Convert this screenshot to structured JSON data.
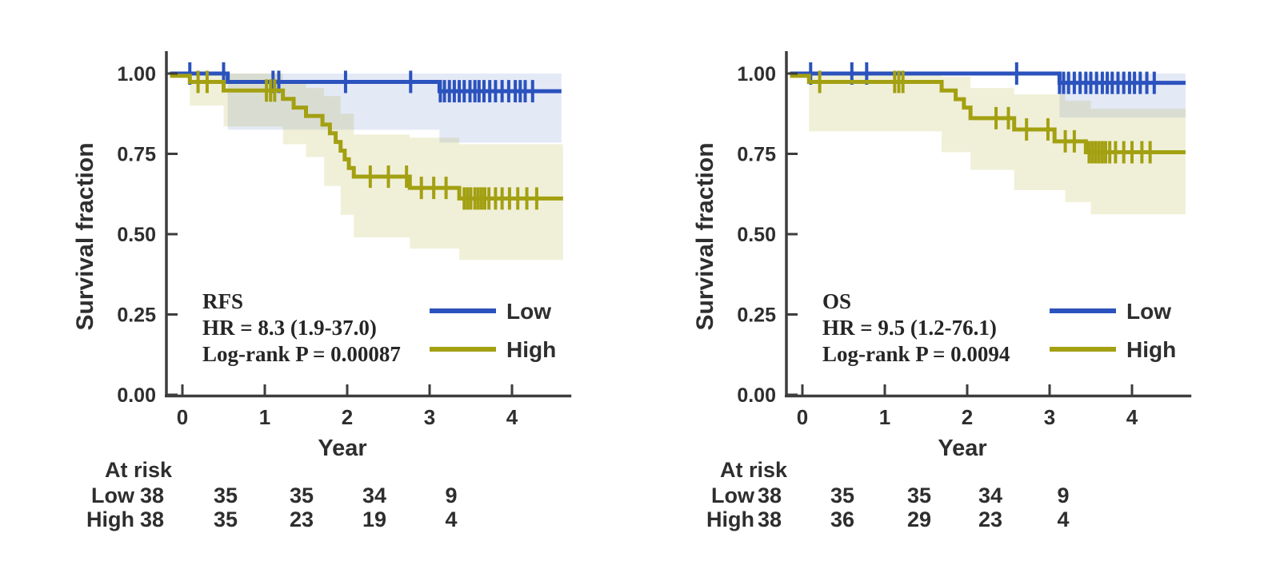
{
  "figure": {
    "background": "#ffffff",
    "axis_color": "#3d3d3d",
    "text_color": "#2e2e2e",
    "low_color": "#2b52bd",
    "high_color": "#a3a012"
  },
  "chart_data": [
    {
      "type": "line",
      "subtype": "kaplan-meier-step",
      "endpoint": "RFS",
      "stats_lines": [
        "RFS",
        "HR = 8.3 (1.9-37.0)",
        "Log-rank P = 0.00087"
      ],
      "xlabel": "Year",
      "ylabel": "Survival fraction",
      "xlim": [
        0,
        4.65
      ],
      "ylim": [
        0.0,
        1.05
      ],
      "xtick_values": [
        0,
        1,
        2,
        3,
        4
      ],
      "xtick_labels": [
        "0",
        "1",
        "2",
        "3",
        "4"
      ],
      "ytick_values": [
        1.0,
        0.75,
        0.5,
        0.25,
        0.0
      ],
      "ytick_labels": [
        "1.00",
        "0.75",
        "0.50",
        "0.25",
        "0.00"
      ],
      "grid": false,
      "legend_position": "lower right inside",
      "legend": [
        {
          "label": "Low",
          "color": "#2b52bd"
        },
        {
          "label": "High",
          "color": "#a3a012"
        }
      ],
      "series": [
        {
          "name": "Low",
          "color": "#2b52bd",
          "band_opacity": 0.13,
          "steps": [
            [
              -0.15,
              1.0
            ],
            [
              0.55,
              0.974
            ],
            [
              3.12,
              0.945
            ]
          ],
          "end": 4.6,
          "censors": [
            0.09,
            0.5,
            1.1,
            1.17,
            1.98,
            2.77,
            3.13,
            3.18,
            3.24,
            3.3,
            3.36,
            3.42,
            3.49,
            3.55,
            3.6,
            3.66,
            3.73,
            3.8,
            3.88,
            3.96,
            4.04,
            4.1,
            4.16,
            4.25
          ],
          "ci_segments": [
            [
              0.55,
              3.12,
              0.825,
              1.0
            ],
            [
              3.12,
              4.6,
              0.785,
              1.0
            ]
          ]
        },
        {
          "name": "High",
          "color": "#a3a012",
          "band_opacity": 0.16,
          "steps": [
            [
              -0.15,
              0.993
            ],
            [
              0.09,
              0.974
            ],
            [
              0.5,
              0.947
            ],
            [
              1.22,
              0.921
            ],
            [
              1.35,
              0.894
            ],
            [
              1.5,
              0.868
            ],
            [
              1.7,
              0.841
            ],
            [
              1.79,
              0.814
            ],
            [
              1.86,
              0.787
            ],
            [
              1.92,
              0.76
            ],
            [
              1.97,
              0.733
            ],
            [
              2.02,
              0.706
            ],
            [
              2.08,
              0.679
            ],
            [
              2.76,
              0.644
            ],
            [
              3.36,
              0.611
            ]
          ],
          "end": 4.62,
          "censors": [
            0.19,
            0.3,
            1.02,
            1.07,
            1.12,
            2.28,
            2.5,
            2.72,
            2.9,
            3.05,
            3.2,
            3.42,
            3.46,
            3.5,
            3.55,
            3.59,
            3.63,
            3.67,
            3.72,
            3.8,
            3.88,
            3.97,
            4.07,
            4.18,
            4.3
          ],
          "ci_segments": [
            [
              0.09,
              0.5,
              0.9,
              1.0
            ],
            [
              0.5,
              1.22,
              0.835,
              1.0
            ],
            [
              1.22,
              1.5,
              0.78,
              0.97
            ],
            [
              1.5,
              1.72,
              0.74,
              0.955
            ],
            [
              1.72,
              1.92,
              0.65,
              0.93
            ],
            [
              1.92,
              2.08,
              0.56,
              0.875
            ],
            [
              2.08,
              2.76,
              0.49,
              0.81
            ],
            [
              2.76,
              3.36,
              0.455,
              0.8
            ],
            [
              3.36,
              4.62,
              0.42,
              0.78
            ]
          ]
        }
      ],
      "at_risk": {
        "title": "At risk",
        "rows": [
          {
            "label": "Low",
            "counts": [
              "38",
              "35",
              "35",
              "34",
              "9"
            ]
          },
          {
            "label": "High",
            "counts": [
              "38",
              "35",
              "23",
              "19",
              "4"
            ]
          }
        ]
      }
    },
    {
      "type": "line",
      "subtype": "kaplan-meier-step",
      "endpoint": "OS",
      "stats_lines": [
        "OS",
        "HR = 9.5 (1.2-76.1)",
        "Log-rank P = 0.0094"
      ],
      "xlabel": "Year",
      "ylabel": "Survival fraction",
      "xlim": [
        0,
        4.65
      ],
      "ylim": [
        0.0,
        1.05
      ],
      "xtick_values": [
        0,
        1,
        2,
        3,
        4
      ],
      "xtick_labels": [
        "0",
        "1",
        "2",
        "3",
        "4"
      ],
      "ytick_values": [
        1.0,
        0.75,
        0.5,
        0.25,
        0.0
      ],
      "ytick_labels": [
        "1.00",
        "0.75",
        "0.50",
        "0.25",
        "0.00"
      ],
      "grid": false,
      "legend_position": "lower right inside",
      "legend": [
        {
          "label": "Low",
          "color": "#2b52bd"
        },
        {
          "label": "High",
          "color": "#a3a012"
        }
      ],
      "series": [
        {
          "name": "Low",
          "color": "#2b52bd",
          "band_opacity": 0.13,
          "steps": [
            [
              -0.15,
              1.0
            ],
            [
              3.12,
              0.971
            ]
          ],
          "end": 4.65,
          "censors": [
            0.1,
            0.6,
            0.78,
            2.6,
            3.12,
            3.17,
            3.23,
            3.3,
            3.37,
            3.44,
            3.5,
            3.57,
            3.64,
            3.7,
            3.76,
            3.83,
            3.9,
            3.97,
            4.03,
            4.1,
            4.18,
            4.27
          ],
          "ci_segments": [
            [
              3.12,
              4.65,
              0.863,
              1.0
            ]
          ]
        },
        {
          "name": "High",
          "color": "#a3a012",
          "band_opacity": 0.16,
          "steps": [
            [
              -0.15,
              0.993
            ],
            [
              0.08,
              0.974
            ],
            [
              1.69,
              0.947
            ],
            [
              1.86,
              0.92
            ],
            [
              1.96,
              0.894
            ],
            [
              2.04,
              0.861
            ],
            [
              2.57,
              0.826
            ],
            [
              3.06,
              0.789
            ],
            [
              3.44,
              0.755
            ]
          ],
          "end": 4.65,
          "censors": [
            0.21,
            1.12,
            1.17,
            1.22,
            2.35,
            2.5,
            2.72,
            2.98,
            3.19,
            3.3,
            3.48,
            3.52,
            3.56,
            3.6,
            3.64,
            3.68,
            3.73,
            3.8,
            3.9,
            4.0,
            4.12,
            4.22
          ],
          "ci_segments": [
            [
              0.08,
              1.69,
              0.82,
              1.0
            ],
            [
              1.69,
              2.04,
              0.755,
              0.99
            ],
            [
              2.04,
              2.57,
              0.7,
              0.955
            ],
            [
              2.57,
              3.19,
              0.637,
              0.935
            ],
            [
              3.19,
              3.5,
              0.6,
              0.915
            ],
            [
              3.5,
              4.65,
              0.562,
              0.89
            ]
          ]
        }
      ],
      "at_risk": {
        "title": "At risk",
        "rows": [
          {
            "label": "Low",
            "counts": [
              "38",
              "35",
              "35",
              "34",
              "9"
            ]
          },
          {
            "label": "High",
            "counts": [
              "38",
              "36",
              "29",
              "23",
              "4"
            ]
          }
        ]
      }
    }
  ]
}
